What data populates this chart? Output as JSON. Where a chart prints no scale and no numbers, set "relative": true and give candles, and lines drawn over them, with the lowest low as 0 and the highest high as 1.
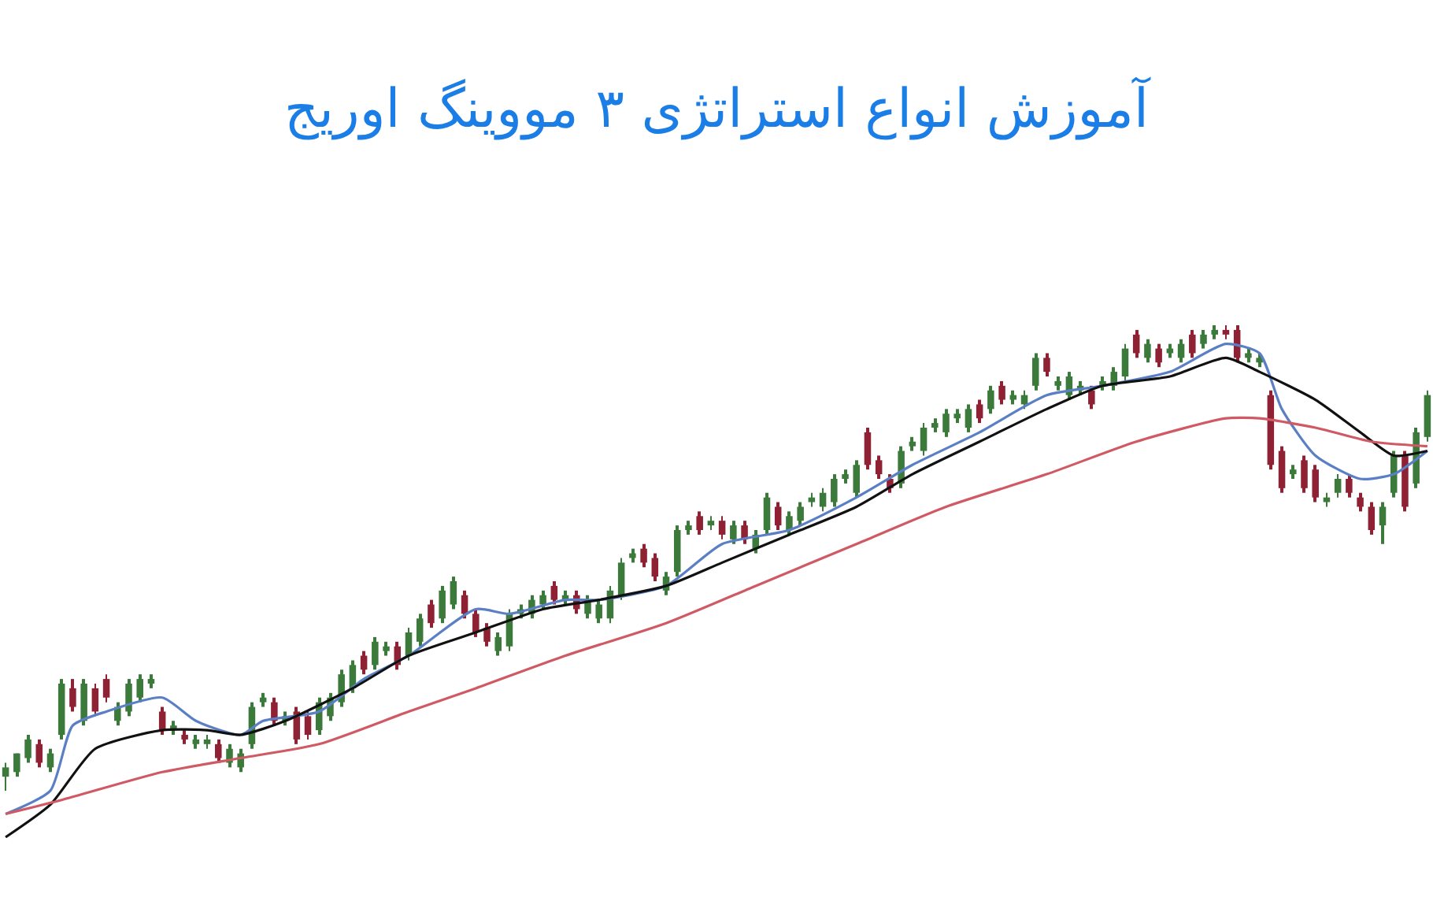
{
  "chart_data": {
    "type": "candlestick",
    "title": "آموزش انواع استراتژی ۳ مووینگ اوریج",
    "relative": true,
    "tick_labels": false,
    "colors": [
      "#3b7a3b",
      "#3b7a3b",
      "#3b7a3b",
      "#8e2234",
      "#3b7a3b",
      "#3b7a3b",
      "#8e2234",
      "#3b7a3b",
      "#8e2234",
      "#8e2234",
      "#3b7a3b",
      "#3b7a3b",
      "#3b7a3b",
      "#3b7a3b",
      "#8e2234",
      "#3b7a3b",
      "#8e2234",
      "#3b7a3b",
      "#3b7a3b",
      "#8e2234",
      "#3b7a3b",
      "#3b7a3b",
      "#3b7a3b",
      "#3b7a3b",
      "#8e2234",
      "#3b7a3b",
      "#8e2234",
      "#8e2234",
      "#3b7a3b",
      "#3b7a3b",
      "#3b7a3b",
      "#3b7a3b",
      "#8e2234",
      "#3b7a3b",
      "#3b7a3b",
      "#8e2234",
      "#3b7a3b",
      "#3b7a3b",
      "#8e2234",
      "#3b7a3b",
      "#3b7a3b",
      "#8e2234",
      "#8e2234",
      "#8e2234",
      "#3b7a3b",
      "#3b7a3b",
      "#3b7a3b",
      "#3b7a3b",
      "#3b7a3b",
      "#8e2234",
      "#3b7a3b",
      "#8e2234",
      "#3b7a3b",
      "#3b7a3b",
      "#3b7a3b",
      "#3b7a3b",
      "#3b7a3b",
      "#8e2234",
      "#8e2234",
      "#3b7a3b",
      "#3b7a3b",
      "#3b7a3b",
      "#8e2234",
      "#3b7a3b",
      "#8e2234",
      "#3b7a3b",
      "#8e2234",
      "#3b7a3b",
      "#3b7a3b",
      "#8e2234",
      "#3b7a3b",
      "#3b7a3b",
      "#3b7a3b",
      "#3b7a3b",
      "#3b7a3b",
      "#3b7a3b",
      "#3b7a3b",
      "#8e2234",
      "#8e2234",
      "#8e2234",
      "#3b7a3b",
      "#3b7a3b",
      "#3b7a3b",
      "#3b7a3b",
      "#3b7a3b",
      "#3b7a3b",
      "#3b7a3b",
      "#8e2234",
      "#3b7a3b",
      "#8e2234",
      "#3b7a3b",
      "#3b7a3b",
      "#3b7a3b",
      "#8e2234",
      "#3b7a3b",
      "#3b7a3b",
      "#3b7a3b",
      "#8e2234",
      "#3b7a3b",
      "#3b7a3b",
      "#3b7a3b",
      "#8e2234",
      "#3b7a3b",
      "#8e2234",
      "#3b7a3b",
      "#3b7a3b",
      "#8e2234",
      "#3b7a3b",
      "#3b7a3b",
      "#8e2234",
      "#8e2234",
      "#3b7a3b",
      "#3b7a3b",
      "#8e2234",
      "#8e2234",
      "#3b7a3b",
      "#8e2234",
      "#8e2234",
      "#3b7a3b",
      "#3b7a3b",
      "#8e2234",
      "#8e2234",
      "#8e2234",
      "#3b7a3b",
      "#3b7a3b",
      "#8e2234",
      "#3b7a3b",
      "#3b7a3b"
    ],
    "categories": [
      null,
      null,
      null,
      null,
      null,
      null,
      null,
      null,
      null,
      null,
      null,
      null,
      null,
      null,
      null,
      null,
      null,
      null,
      null,
      null,
      null,
      null,
      null,
      null,
      null,
      null,
      null,
      null,
      null,
      null,
      null,
      null,
      null,
      null,
      null,
      null,
      null,
      null,
      null,
      null,
      null,
      null,
      null,
      null,
      null,
      null,
      null,
      null,
      null,
      null,
      null,
      null,
      null,
      null,
      null,
      null,
      null,
      null,
      null,
      null,
      null,
      null,
      null,
      null,
      null,
      null,
      null,
      null,
      null,
      null,
      null,
      null,
      null,
      null,
      null,
      null,
      null,
      null,
      null,
      null,
      null,
      null,
      null,
      null,
      null,
      null,
      null,
      null,
      null,
      null,
      null,
      null,
      null,
      null,
      null,
      null,
      null,
      null,
      null,
      null,
      null,
      null,
      null,
      null,
      null,
      null,
      null,
      null,
      null,
      null,
      null,
      null,
      null,
      null,
      null,
      null,
      null,
      null,
      null,
      null,
      null,
      null,
      null,
      null,
      null,
      null,
      null,
      null
    ],
    "ohlc": [
      [
        0.03,
        0.06,
        0.0,
        0.05
      ],
      [
        0.04,
        0.08,
        0.03,
        0.08
      ],
      [
        0.07,
        0.12,
        0.06,
        0.11
      ],
      [
        0.1,
        0.11,
        0.05,
        0.06
      ],
      [
        0.05,
        0.09,
        0.04,
        0.08
      ],
      [
        0.12,
        0.24,
        0.11,
        0.23
      ],
      [
        0.22,
        0.24,
        0.17,
        0.18
      ],
      [
        0.15,
        0.24,
        0.14,
        0.23
      ],
      [
        0.22,
        0.23,
        0.16,
        0.17
      ],
      [
        0.24,
        0.25,
        0.19,
        0.2
      ],
      [
        0.15,
        0.19,
        0.14,
        0.18
      ],
      [
        0.17,
        0.24,
        0.16,
        0.23
      ],
      [
        0.2,
        0.25,
        0.19,
        0.24
      ],
      [
        0.23,
        0.25,
        0.22,
        0.24
      ],
      [
        0.17,
        0.18,
        0.12,
        0.13
      ],
      [
        0.13,
        0.15,
        0.12,
        0.14
      ],
      [
        0.12,
        0.13,
        0.1,
        0.11
      ],
      [
        0.1,
        0.12,
        0.09,
        0.11
      ],
      [
        0.1,
        0.12,
        0.09,
        0.11
      ],
      [
        0.1,
        0.11,
        0.06,
        0.07
      ],
      [
        0.06,
        0.1,
        0.05,
        0.09
      ],
      [
        0.05,
        0.09,
        0.04,
        0.08
      ],
      [
        0.1,
        0.19,
        0.09,
        0.18
      ],
      [
        0.19,
        0.21,
        0.18,
        0.2
      ],
      [
        0.19,
        0.2,
        0.14,
        0.15
      ],
      [
        0.15,
        0.17,
        0.14,
        0.16
      ],
      [
        0.17,
        0.18,
        0.1,
        0.11
      ],
      [
        0.16,
        0.17,
        0.11,
        0.12
      ],
      [
        0.13,
        0.2,
        0.12,
        0.19
      ],
      [
        0.16,
        0.21,
        0.15,
        0.2
      ],
      [
        0.19,
        0.26,
        0.18,
        0.25
      ],
      [
        0.22,
        0.28,
        0.21,
        0.27
      ],
      [
        0.29,
        0.3,
        0.25,
        0.26
      ],
      [
        0.27,
        0.33,
        0.26,
        0.32
      ],
      [
        0.3,
        0.32,
        0.29,
        0.31
      ],
      [
        0.31,
        0.32,
        0.26,
        0.27
      ],
      [
        0.29,
        0.35,
        0.28,
        0.34
      ],
      [
        0.32,
        0.38,
        0.31,
        0.37
      ],
      [
        0.4,
        0.41,
        0.35,
        0.36
      ],
      [
        0.37,
        0.44,
        0.36,
        0.43
      ],
      [
        0.4,
        0.46,
        0.39,
        0.45
      ],
      [
        0.42,
        0.43,
        0.37,
        0.38
      ],
      [
        0.38,
        0.39,
        0.33,
        0.34
      ],
      [
        0.35,
        0.36,
        0.31,
        0.32
      ],
      [
        0.3,
        0.34,
        0.29,
        0.33
      ],
      [
        0.31,
        0.39,
        0.3,
        0.38
      ],
      [
        0.38,
        0.4,
        0.37,
        0.39
      ],
      [
        0.38,
        0.42,
        0.37,
        0.41
      ],
      [
        0.4,
        0.43,
        0.39,
        0.42
      ],
      [
        0.44,
        0.45,
        0.4,
        0.41
      ],
      [
        0.41,
        0.43,
        0.4,
        0.42
      ],
      [
        0.42,
        0.43,
        0.38,
        0.39
      ],
      [
        0.38,
        0.42,
        0.37,
        0.41
      ],
      [
        0.37,
        0.41,
        0.36,
        0.4
      ],
      [
        0.37,
        0.44,
        0.36,
        0.43
      ],
      [
        0.42,
        0.5,
        0.41,
        0.49
      ],
      [
        0.5,
        0.52,
        0.49,
        0.51
      ],
      [
        0.52,
        0.53,
        0.48,
        0.49
      ],
      [
        0.5,
        0.51,
        0.45,
        0.46
      ],
      [
        0.43,
        0.47,
        0.42,
        0.46
      ],
      [
        0.47,
        0.57,
        0.46,
        0.56
      ],
      [
        0.56,
        0.58,
        0.55,
        0.57
      ],
      [
        0.59,
        0.6,
        0.55,
        0.56
      ],
      [
        0.57,
        0.59,
        0.56,
        0.58
      ],
      [
        0.58,
        0.59,
        0.54,
        0.55
      ],
      [
        0.54,
        0.58,
        0.53,
        0.57
      ],
      [
        0.57,
        0.58,
        0.53,
        0.54
      ],
      [
        0.52,
        0.56,
        0.51,
        0.55
      ],
      [
        0.56,
        0.64,
        0.55,
        0.63
      ],
      [
        0.61,
        0.62,
        0.56,
        0.57
      ],
      [
        0.56,
        0.6,
        0.55,
        0.59
      ],
      [
        0.58,
        0.62,
        0.57,
        0.61
      ],
      [
        0.62,
        0.64,
        0.61,
        0.63
      ],
      [
        0.61,
        0.65,
        0.6,
        0.64
      ],
      [
        0.62,
        0.68,
        0.61,
        0.67
      ],
      [
        0.67,
        0.69,
        0.66,
        0.68
      ],
      [
        0.64,
        0.71,
        0.63,
        0.7
      ],
      [
        0.77,
        0.78,
        0.69,
        0.7
      ],
      [
        0.71,
        0.72,
        0.67,
        0.68
      ],
      [
        0.67,
        0.68,
        0.64,
        0.65
      ],
      [
        0.66,
        0.74,
        0.65,
        0.73
      ],
      [
        0.74,
        0.76,
        0.73,
        0.75
      ],
      [
        0.73,
        0.79,
        0.72,
        0.78
      ],
      [
        0.78,
        0.8,
        0.77,
        0.79
      ],
      [
        0.77,
        0.82,
        0.76,
        0.81
      ],
      [
        0.8,
        0.82,
        0.79,
        0.81
      ],
      [
        0.78,
        0.83,
        0.77,
        0.82
      ],
      [
        0.83,
        0.84,
        0.79,
        0.8
      ],
      [
        0.82,
        0.87,
        0.81,
        0.86
      ],
      [
        0.87,
        0.88,
        0.83,
        0.84
      ],
      [
        0.84,
        0.86,
        0.83,
        0.85
      ],
      [
        0.83,
        0.86,
        0.82,
        0.85
      ],
      [
        0.87,
        0.94,
        0.86,
        0.93
      ],
      [
        0.93,
        0.94,
        0.89,
        0.9
      ],
      [
        0.87,
        0.89,
        0.86,
        0.88
      ],
      [
        0.85,
        0.9,
        0.84,
        0.89
      ],
      [
        0.86,
        0.88,
        0.85,
        0.87
      ],
      [
        0.86,
        0.87,
        0.82,
        0.83
      ],
      [
        0.87,
        0.89,
        0.86,
        0.88
      ],
      [
        0.87,
        0.91,
        0.86,
        0.9
      ],
      [
        0.89,
        0.96,
        0.88,
        0.95
      ],
      [
        0.98,
        0.99,
        0.93,
        0.94
      ],
      [
        0.93,
        0.97,
        0.92,
        0.96
      ],
      [
        0.95,
        0.96,
        0.91,
        0.92
      ],
      [
        0.94,
        0.96,
        0.93,
        0.95
      ],
      [
        0.93,
        0.97,
        0.92,
        0.96
      ],
      [
        0.98,
        0.99,
        0.93,
        0.94
      ],
      [
        0.96,
        0.99,
        0.95,
        0.98
      ],
      [
        0.98,
        1.0,
        0.97,
        0.99
      ],
      [
        0.99,
        1.0,
        0.97,
        0.98
      ],
      [
        0.99,
        1.0,
        0.92,
        0.93
      ],
      [
        0.93,
        0.95,
        0.92,
        0.94
      ],
      [
        0.92,
        0.94,
        0.91,
        0.93
      ],
      [
        0.85,
        0.86,
        0.69,
        0.7
      ],
      [
        0.73,
        0.74,
        0.64,
        0.65
      ],
      [
        0.68,
        0.7,
        0.67,
        0.69
      ],
      [
        0.71,
        0.72,
        0.64,
        0.65
      ],
      [
        0.69,
        0.7,
        0.62,
        0.63
      ],
      [
        0.62,
        0.64,
        0.61,
        0.63
      ],
      [
        0.64,
        0.68,
        0.63,
        0.67
      ],
      [
        0.67,
        0.68,
        0.63,
        0.64
      ],
      [
        0.63,
        0.64,
        0.6,
        0.61
      ],
      [
        0.61,
        0.62,
        0.55,
        0.56
      ],
      [
        0.57,
        0.62,
        0.53,
        0.61
      ],
      [
        0.64,
        0.73,
        0.63,
        0.72
      ],
      [
        0.72,
        0.73,
        0.6,
        0.61
      ],
      [
        0.66,
        0.78,
        0.65,
        0.77
      ],
      [
        0.76,
        0.86,
        0.75,
        0.85
      ]
    ],
    "series": [
      {
        "type": "line",
        "color": "#5b7fc4",
        "values": [
          -0.05,
          null,
          null,
          null,
          0.0,
          null,
          0.14,
          null,
          null,
          0.17,
          null,
          null,
          null,
          null,
          0.2,
          null,
          null,
          0.15,
          null,
          null,
          null,
          0.12,
          null,
          0.15,
          null,
          null,
          null,
          null,
          0.17,
          null,
          null,
          null,
          0.24,
          null,
          null,
          null,
          0.29,
          null,
          null,
          null,
          null,
          null,
          0.39,
          null,
          null,
          0.38,
          null,
          null,
          null,
          null,
          0.41,
          null,
          null,
          0.41,
          null,
          null,
          null,
          null,
          null,
          0.44,
          null,
          null,
          null,
          null,
          0.53,
          null,
          null,
          null,
          null,
          null,
          0.56,
          null,
          null,
          null,
          null,
          null,
          0.63,
          null,
          null,
          null,
          null,
          0.7,
          null,
          null,
          null,
          null,
          null,
          0.77,
          null,
          null,
          null,
          null,
          null,
          0.85,
          null,
          null,
          null,
          null,
          0.87,
          null,
          null,
          null,
          null,
          null,
          0.9,
          null,
          null,
          null,
          null,
          0.96,
          null,
          null,
          0.94,
          null,
          0.82,
          null,
          null,
          0.72,
          null,
          null,
          null,
          0.67,
          null,
          null,
          0.68,
          null,
          null,
          0.73
        ]
      },
      {
        "type": "line",
        "color": "#111111",
        "values": [
          -0.1,
          null,
          null,
          null,
          -0.03,
          null,
          null,
          null,
          0.09,
          null,
          null,
          null,
          null,
          null,
          0.13,
          null,
          null,
          null,
          0.13,
          null,
          null,
          0.12,
          null,
          null,
          null,
          0.15,
          null,
          null,
          null,
          null,
          null,
          0.22,
          null,
          null,
          null,
          null,
          0.29,
          null,
          null,
          null,
          null,
          null,
          0.34,
          null,
          null,
          null,
          null,
          null,
          0.39,
          null,
          null,
          null,
          null,
          0.41,
          null,
          null,
          null,
          null,
          null,
          0.44,
          null,
          null,
          null,
          null,
          0.49,
          null,
          null,
          null,
          null,
          null,
          0.55,
          null,
          null,
          null,
          null,
          null,
          0.61,
          null,
          null,
          null,
          null,
          0.68,
          null,
          null,
          null,
          null,
          null,
          0.75,
          null,
          null,
          null,
          null,
          null,
          0.82,
          null,
          null,
          null,
          null,
          0.87,
          null,
          null,
          null,
          null,
          null,
          0.89,
          null,
          null,
          null,
          null,
          0.93,
          null,
          null,
          0.9,
          null,
          null,
          null,
          null,
          0.84,
          null,
          null,
          null,
          0.77,
          null,
          null,
          0.72,
          null,
          null,
          0.73
        ]
      },
      {
        "type": "line",
        "color": "#d05a64",
        "values": [
          -0.05,
          null,
          null,
          null,
          null,
          -0.02,
          null,
          null,
          null,
          null,
          null,
          null,
          null,
          null,
          0.04,
          null,
          null,
          null,
          null,
          null,
          null,
          0.07,
          null,
          null,
          null,
          null,
          null,
          null,
          0.1,
          null,
          null,
          null,
          null,
          null,
          null,
          null,
          0.17,
          null,
          null,
          null,
          null,
          null,
          0.22,
          null,
          null,
          null,
          null,
          null,
          null,
          null,
          0.29,
          null,
          null,
          null,
          null,
          null,
          null,
          null,
          null,
          0.36,
          null,
          null,
          null,
          null,
          null,
          null,
          null,
          0.44,
          null,
          null,
          null,
          null,
          null,
          null,
          null,
          null,
          0.53,
          null,
          null,
          null,
          null,
          null,
          null,
          null,
          0.61,
          null,
          null,
          null,
          null,
          null,
          null,
          null,
          null,
          0.68,
          null,
          null,
          null,
          null,
          null,
          null,
          null,
          0.75,
          null,
          null,
          null,
          null,
          null,
          null,
          null,
          0.8,
          null,
          null,
          0.8,
          null,
          null,
          null,
          null,
          0.78,
          null,
          null,
          null,
          null,
          0.75,
          null,
          null,
          null,
          null,
          0.74
        ]
      }
    ]
  }
}
